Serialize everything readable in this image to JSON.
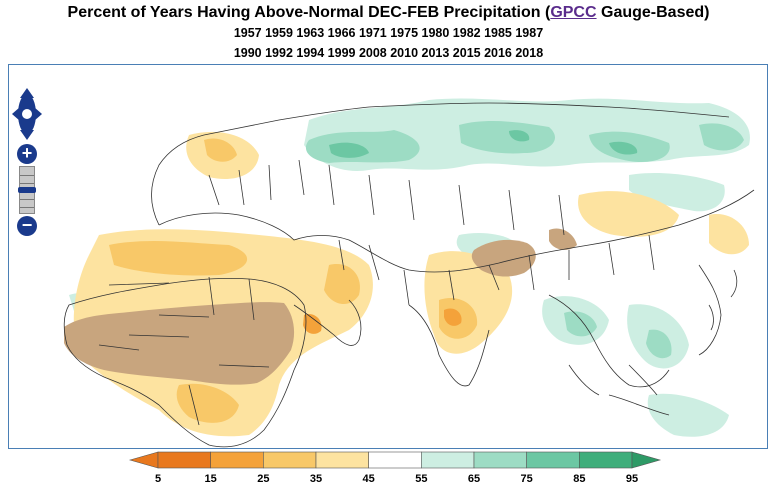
{
  "header": {
    "title_prefix": "Percent of Years Having Above-Normal DEC-FEB Precipitation (",
    "title_link": "GPCC",
    "title_suffix": " Gauge-Based)",
    "years_row1": "1957 1959 1963 1966 1971 1975 1980 1982 1985 1987",
    "years_row2": "1990 1992 1994 1999 2008 2010 2013 2015 2016 2018"
  },
  "map": {
    "region": "Africa, Europe and Asia",
    "controls": {
      "pan": "pan-control",
      "zoom_in_label": "+",
      "zoom_out_label": "−"
    }
  },
  "legend": {
    "ticks": [
      "5",
      "15",
      "25",
      "35",
      "45",
      "55",
      "65",
      "75",
      "85",
      "95"
    ],
    "colors": [
      "#e8781e",
      "#f4a23a",
      "#f8c868",
      "#fde3a0",
      "#ffffff",
      "#cdeee2",
      "#9ddcc4",
      "#6cc7a3",
      "#3fae7b"
    ],
    "low_arrow_color": "#e8781e",
    "high_arrow_color": "#2e9a66"
  },
  "colors": {
    "frame": "#4a7fb5",
    "dry_extreme": "#c8a57e",
    "dry_moderate": "#f8c868",
    "dry_light": "#fde3a0",
    "dry_strong": "#f4a23a",
    "wet_light": "#cdeee2",
    "wet_moderate": "#9ddcc4",
    "wet_strong": "#6cc7a3",
    "boundary": "#333333"
  }
}
